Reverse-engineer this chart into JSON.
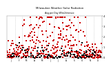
{
  "title": "Milwaukee Weather Solar Radiation",
  "subtitle": "Avg per Day W/m2/minute",
  "bg_color": "#ffffff",
  "plot_bg_color": "#ffffff",
  "grid_color": "#bbbbbb",
  "red_color": "#cc0000",
  "black_color": "#000000",
  "ylim": [
    0,
    400
  ],
  "num_points": 365,
  "seed": 7,
  "month_boundaries": [
    0,
    31,
    59,
    90,
    120,
    151,
    181,
    212,
    243,
    273,
    304,
    334,
    365
  ],
  "month_labels": [
    "J",
    "F",
    "M",
    "A",
    "M",
    "J",
    "J",
    "A",
    "S",
    "O",
    "N",
    "D"
  ],
  "mid_month": [
    15,
    46,
    74,
    105,
    135,
    166,
    196,
    227,
    258,
    288,
    319,
    349
  ],
  "ytick_labels": [
    "0",
    "1",
    "2",
    "3",
    "4"
  ],
  "ytick_vals": [
    0,
    100,
    200,
    300,
    400
  ]
}
